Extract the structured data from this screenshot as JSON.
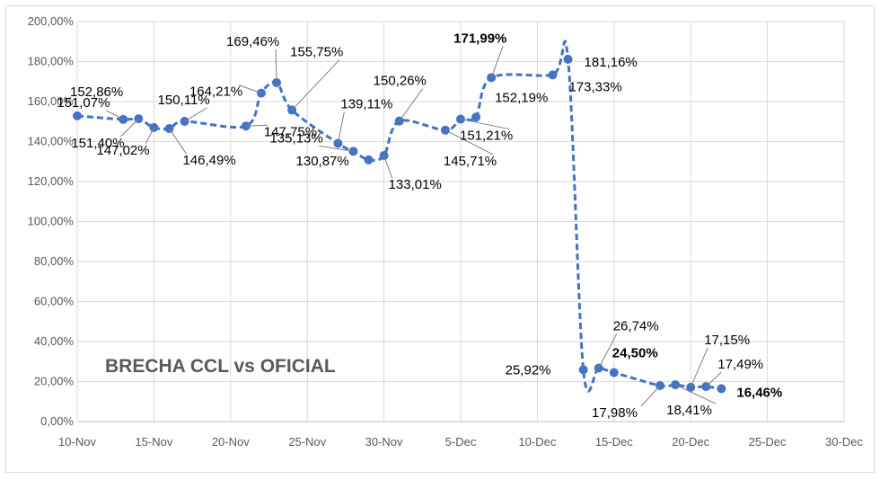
{
  "colors": {
    "series": "#4472c4",
    "grid": "#d9d9d9",
    "axis_text": "#595959",
    "leader": "#7f7f7f"
  },
  "chart_data": {
    "type": "line",
    "title": "BRECHA CCL vs OFICIAL",
    "xlabel": "",
    "ylabel": "",
    "ylim": [
      0,
      200
    ],
    "xlim": [
      "2021-11-10",
      "2021-12-30"
    ],
    "grid": true,
    "legend": "none",
    "y_ticks": [
      "0,00%",
      "20,00%",
      "40,00%",
      "60,00%",
      "80,00%",
      "100,00%",
      "120,00%",
      "140,00%",
      "160,00%",
      "180,00%",
      "200,00%"
    ],
    "x_ticks": [
      "10-Nov",
      "15-Nov",
      "20-Nov",
      "25-Nov",
      "30-Nov",
      "5-Dec",
      "10-Dec",
      "15-Dec",
      "20-Dec",
      "25-Dec",
      "30-Dec"
    ],
    "points": [
      {
        "x": "2021-11-10",
        "y": 152.86,
        "label": "152,86%"
      },
      {
        "x": "2021-11-13",
        "y": 151.07,
        "label": "151,07%"
      },
      {
        "x": "2021-11-14",
        "y": 151.4,
        "label": "151,40%"
      },
      {
        "x": "2021-11-15",
        "y": 147.02,
        "label": "147,02%"
      },
      {
        "x": "2021-11-16",
        "y": 146.49,
        "label": "146,49%"
      },
      {
        "x": "2021-11-17",
        "y": 150.11,
        "label": "150,11%"
      },
      {
        "x": "2021-11-21",
        "y": 147.75,
        "label": "147,75%"
      },
      {
        "x": "2021-11-22",
        "y": 164.21,
        "label": "164,21%"
      },
      {
        "x": "2021-11-23",
        "y": 169.46,
        "label": "169,46%"
      },
      {
        "x": "2021-11-24",
        "y": 155.75,
        "label": "155,75%"
      },
      {
        "x": "2021-11-27",
        "y": 139.11,
        "label": "139,11%"
      },
      {
        "x": "2021-11-28",
        "y": 135.13,
        "label": "135,13%"
      },
      {
        "x": "2021-11-29",
        "y": 130.87,
        "label": "130,87%"
      },
      {
        "x": "2021-11-30",
        "y": 133.01,
        "label": "133,01%"
      },
      {
        "x": "2021-12-01",
        "y": 150.26,
        "label": "150,26%"
      },
      {
        "x": "2021-12-04",
        "y": 145.71,
        "label": "145,71%"
      },
      {
        "x": "2021-12-05",
        "y": 151.21,
        "label": "151,21%"
      },
      {
        "x": "2021-12-06",
        "y": 152.19,
        "label": "152,19%"
      },
      {
        "x": "2021-12-07",
        "y": 171.99,
        "label": "171,99%"
      },
      {
        "x": "2021-12-11",
        "y": 173.33,
        "label": "173,33%"
      },
      {
        "x": "2021-12-12",
        "y": 181.16,
        "label": "181,16%"
      },
      {
        "x": "2021-12-13",
        "y": 25.92,
        "label": "25,92%"
      },
      {
        "x": "2021-12-14",
        "y": 26.74,
        "label": "26,74%"
      },
      {
        "x": "2021-12-15",
        "y": 24.5,
        "label": "24,50%"
      },
      {
        "x": "2021-12-18",
        "y": 17.98,
        "label": "17,98%"
      },
      {
        "x": "2021-12-19",
        "y": 18.41,
        "label": "18,41%"
      },
      {
        "x": "2021-12-20",
        "y": 17.15,
        "label": "17,15%"
      },
      {
        "x": "2021-12-21",
        "y": 17.49,
        "label": "17,49%"
      },
      {
        "x": "2021-12-22",
        "y": 16.46,
        "label": "16,46%"
      }
    ]
  }
}
